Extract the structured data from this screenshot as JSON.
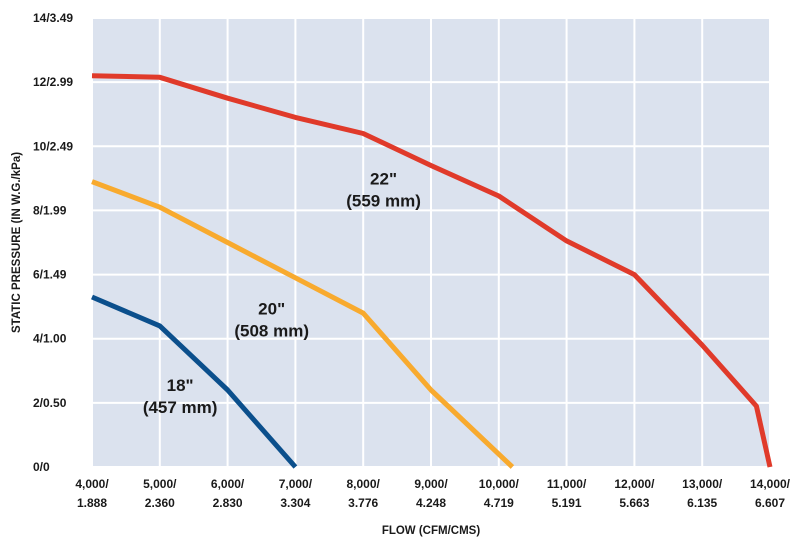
{
  "chart_data": {
    "type": "line",
    "xlabel": "FLOW (CFM/CMS)",
    "ylabel": "STATIC PRESSURE (IN W.G./kPa)",
    "xlim": [
      4000,
      14000
    ],
    "ylim": [
      0,
      14
    ],
    "grid": true,
    "background_color": "#dbe2ee",
    "x_ticks": [
      {
        "value": 4000,
        "line1": "4,000/",
        "line2": "1.888"
      },
      {
        "value": 5000,
        "line1": "5,000/",
        "line2": "2.360"
      },
      {
        "value": 6000,
        "line1": "6,000/",
        "line2": "2.830"
      },
      {
        "value": 7000,
        "line1": "7,000/",
        "line2": "3.304"
      },
      {
        "value": 8000,
        "line1": "8,000/",
        "line2": "3.776"
      },
      {
        "value": 9000,
        "line1": "9,000/",
        "line2": "4.248"
      },
      {
        "value": 10000,
        "line1": "10,000/",
        "line2": "4.719"
      },
      {
        "value": 11000,
        "line1": "11,000/",
        "line2": "5.191"
      },
      {
        "value": 12000,
        "line1": "12,000/",
        "line2": "5.663"
      },
      {
        "value": 13000,
        "line1": "13,000/",
        "line2": "6.135"
      },
      {
        "value": 14000,
        "line1": "14,000/",
        "line2": "6.607"
      }
    ],
    "y_ticks": [
      {
        "value": 0,
        "label": "0/0"
      },
      {
        "value": 2,
        "label": "2/0.50"
      },
      {
        "value": 4,
        "label": "4/1.00"
      },
      {
        "value": 6,
        "label": "6/1.49"
      },
      {
        "value": 8,
        "label": "8/1.99"
      },
      {
        "value": 10,
        "label": "10/2.49"
      },
      {
        "value": 12,
        "label": "12/2.99"
      },
      {
        "value": 14,
        "label": "14/3.49"
      }
    ],
    "series": [
      {
        "name_line1": "18\"",
        "name_line2": "(457 mm)",
        "color": "#0b4f8c",
        "label_at": {
          "x": 5300,
          "y": 2.3
        },
        "points": [
          [
            4000,
            5.3
          ],
          [
            5000,
            4.4
          ],
          [
            6000,
            2.4
          ],
          [
            7000,
            0
          ]
        ]
      },
      {
        "name_line1": "20\"",
        "name_line2": "(508 mm)",
        "color": "#f8aa2e",
        "label_at": {
          "x": 6650,
          "y": 4.7
        },
        "points": [
          [
            4000,
            8.9
          ],
          [
            5000,
            8.1
          ],
          [
            6000,
            7.0
          ],
          [
            7000,
            5.9
          ],
          [
            8000,
            4.8
          ],
          [
            9000,
            2.4
          ],
          [
            10200,
            0
          ]
        ]
      },
      {
        "name_line1": "22\"",
        "name_line2": "(559 mm)",
        "color": "#e03a2a",
        "label_at": {
          "x": 8300,
          "y": 8.75
        },
        "points": [
          [
            4000,
            12.2
          ],
          [
            5000,
            12.15
          ],
          [
            6000,
            11.5
          ],
          [
            7000,
            10.9
          ],
          [
            8000,
            10.4
          ],
          [
            9000,
            9.4
          ],
          [
            10000,
            8.45
          ],
          [
            11000,
            7.05
          ],
          [
            12000,
            6.0
          ],
          [
            13000,
            3.8
          ],
          [
            13800,
            1.9
          ],
          [
            14000,
            0
          ]
        ]
      }
    ]
  }
}
